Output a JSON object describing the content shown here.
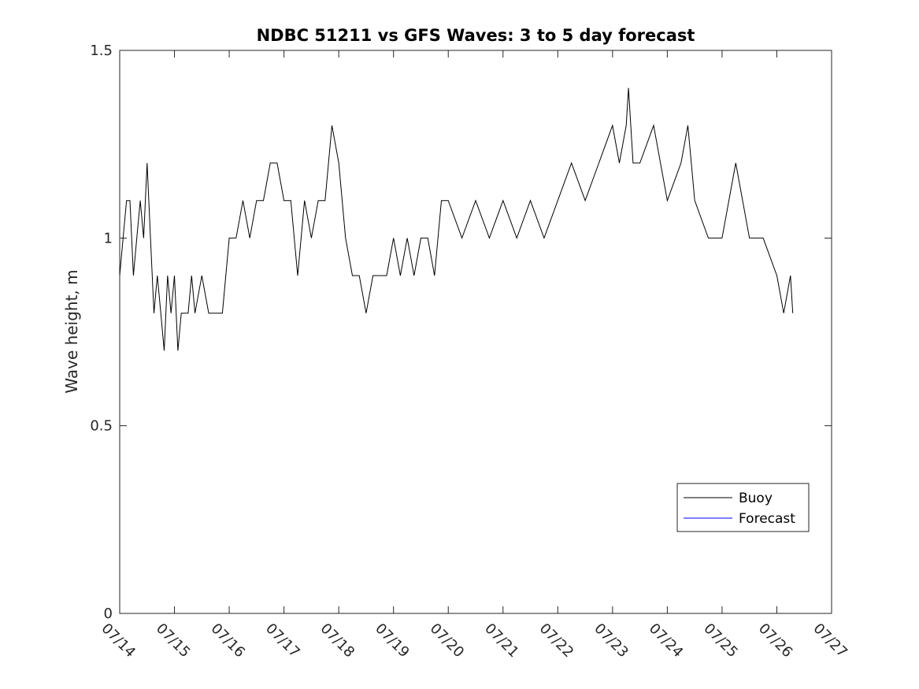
{
  "chart_data": {
    "type": "line",
    "title": "NDBC 51211 vs GFS Waves: 3 to 5 day forecast",
    "xlabel": "",
    "ylabel": "Wave height, m",
    "xlim": [
      "07/14",
      "07/27"
    ],
    "ylim": [
      0,
      1.5
    ],
    "x_ticks": [
      "07/14",
      "07/15",
      "07/16",
      "07/17",
      "07/18",
      "07/19",
      "07/20",
      "07/21",
      "07/22",
      "07/23",
      "07/24",
      "07/25",
      "07/26",
      "07/27"
    ],
    "y_ticks": [
      "0",
      "0.5",
      "1",
      "1.5"
    ],
    "grid": false,
    "legend_position": "lower-right",
    "series": [
      {
        "name": "Buoy",
        "color": "#000000",
        "x": [
          "07/14 00:00",
          "07/14 01:30",
          "07/14 03:00",
          "07/14 04:30",
          "07/14 06:00",
          "07/14 07:30",
          "07/14 09:00",
          "07/14 10:30",
          "07/14 12:00",
          "07/14 13:30",
          "07/14 15:00",
          "07/14 16:30",
          "07/14 18:00",
          "07/14 19:30",
          "07/14 21:00",
          "07/14 22:30",
          "07/15 00:00",
          "07/15 01:30",
          "07/15 03:00",
          "07/15 04:30",
          "07/15 06:00",
          "07/15 07:30",
          "07/15 09:00",
          "07/15 12:00",
          "07/15 15:00",
          "07/15 18:00",
          "07/15 21:00",
          "07/16 00:00",
          "07/16 03:00",
          "07/16 06:00",
          "07/16 09:00",
          "07/16 12:00",
          "07/16 15:00",
          "07/16 18:00",
          "07/16 21:00",
          "07/17 00:00",
          "07/17 03:00",
          "07/17 06:00",
          "07/17 09:00",
          "07/17 12:00",
          "07/17 15:00",
          "07/17 18:00",
          "07/17 21:00",
          "07/18 00:00",
          "07/18 03:00",
          "07/18 06:00",
          "07/18 09:00",
          "07/18 12:00",
          "07/18 15:00",
          "07/18 18:00",
          "07/18 21:00",
          "07/19 00:00",
          "07/19 03:00",
          "07/19 06:00",
          "07/19 09:00",
          "07/19 12:00",
          "07/19 15:00",
          "07/19 18:00",
          "07/19 21:00",
          "07/20 00:00",
          "07/20 06:00",
          "07/20 12:00",
          "07/20 18:00",
          "07/21 00:00",
          "07/21 06:00",
          "07/21 12:00",
          "07/21 18:00",
          "07/22 00:00",
          "07/22 06:00",
          "07/22 12:00",
          "07/22 18:00",
          "07/23 00:00",
          "07/23 03:00",
          "07/23 06:00",
          "07/23 07:00",
          "07/23 09:00",
          "07/23 12:00",
          "07/23 18:00",
          "07/24 00:00",
          "07/24 06:00",
          "07/24 09:00",
          "07/24 12:00",
          "07/24 18:00",
          "07/25 00:00",
          "07/25 06:00",
          "07/25 12:00",
          "07/25 18:00",
          "07/26 00:00",
          "07/26 03:00",
          "07/26 06:00",
          "07/26 07:00"
        ],
        "values": [
          0.9,
          1.0,
          1.1,
          1.1,
          0.9,
          1.0,
          1.1,
          1.0,
          1.2,
          1.0,
          0.8,
          0.9,
          0.8,
          0.7,
          0.9,
          0.8,
          0.9,
          0.7,
          0.8,
          0.8,
          0.8,
          0.9,
          0.8,
          0.9,
          0.8,
          0.8,
          0.8,
          1.0,
          1.0,
          1.1,
          1.0,
          1.1,
          1.1,
          1.2,
          1.2,
          1.1,
          1.1,
          0.9,
          1.1,
          1.0,
          1.1,
          1.1,
          1.3,
          1.2,
          1.0,
          0.9,
          0.9,
          0.8,
          0.9,
          0.9,
          0.9,
          1.0,
          0.9,
          1.0,
          0.9,
          1.0,
          1.0,
          0.9,
          1.1,
          1.1,
          1.0,
          1.1,
          1.0,
          1.1,
          1.0,
          1.1,
          1.0,
          1.1,
          1.2,
          1.1,
          1.2,
          1.3,
          1.2,
          1.3,
          1.4,
          1.2,
          1.2,
          1.3,
          1.1,
          1.2,
          1.3,
          1.1,
          1.0,
          1.0,
          1.2,
          1.0,
          1.0,
          0.9,
          0.8,
          0.9,
          0.8
        ]
      },
      {
        "name": "Forecast",
        "color": "#0000ff",
        "x": [],
        "values": []
      }
    ]
  }
}
